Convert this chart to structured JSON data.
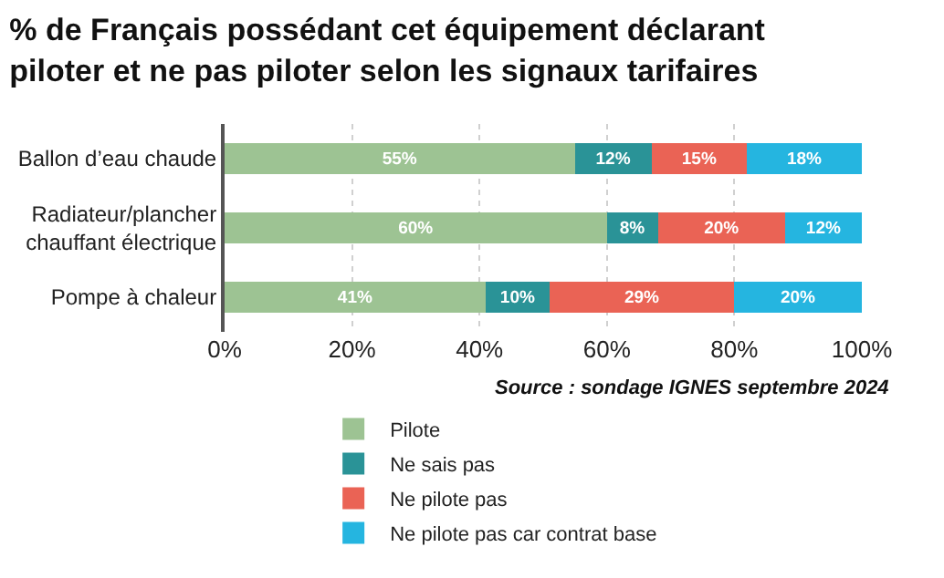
{
  "chart_data": {
    "type": "bar",
    "orientation": "horizontal",
    "stacked": true,
    "title": "% de Français possédant cet équipement déclarant\npiloter et ne pas piloter selon les signaux tarifaires",
    "categories": [
      "Ballon d’eau chaude",
      "Radiateur/plancher\nchauffant électrique",
      "Pompe à chaleur"
    ],
    "series": [
      {
        "name": "Pilote",
        "color": "#9dc393",
        "values": [
          55,
          60,
          41
        ],
        "value_labels": [
          "55%",
          "60%",
          "41%"
        ]
      },
      {
        "name": "Ne sais pas",
        "color": "#2a9397",
        "values": [
          12,
          8,
          10
        ],
        "value_labels": [
          "12%",
          "8%",
          "10%"
        ]
      },
      {
        "name": "Ne pilote pas",
        "color": "#ea6355",
        "values": [
          15,
          20,
          29
        ],
        "value_labels": [
          "15%",
          "20%",
          "29%"
        ]
      },
      {
        "name": "Ne pilote pas car contrat base",
        "color": "#25b5e0",
        "values": [
          18,
          12,
          20
        ],
        "value_labels": [
          "18%",
          "12%",
          "20%"
        ]
      }
    ],
    "xlim": [
      0,
      100
    ],
    "xticks": [
      {
        "value": 0,
        "label": "0%"
      },
      {
        "value": 20,
        "label": "20%"
      },
      {
        "value": 40,
        "label": "40%"
      },
      {
        "value": 60,
        "label": "60%"
      },
      {
        "value": 80,
        "label": "80%"
      },
      {
        "value": 100,
        "label": "100%"
      }
    ],
    "grid": "x",
    "legend": "bottom",
    "annotations": [
      "Source : sondage IGNES septembre 2024"
    ]
  }
}
